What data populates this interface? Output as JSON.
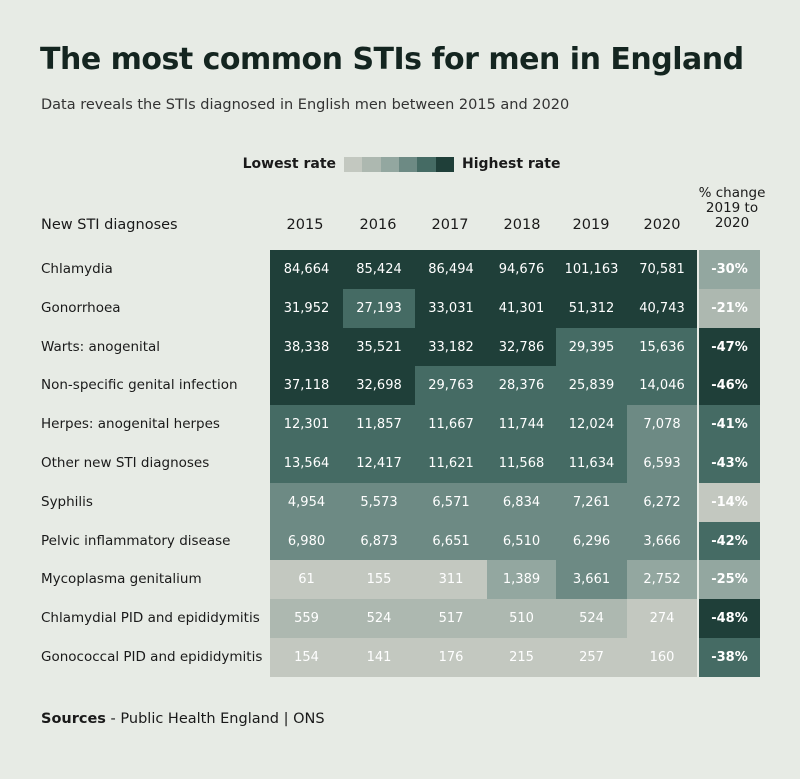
{
  "title": "The most common STIs for men in England",
  "subtitle": "Data reveals the STIs diagnosed in English men between 2015 and 2020",
  "legend": {
    "low_label": "Lowest rate",
    "high_label": "Highest rate",
    "scale_colors": [
      "#c3c8c0",
      "#adb8b0",
      "#93a7a0",
      "#6d8a84",
      "#456b64",
      "#1f3f39"
    ]
  },
  "table": {
    "row_header": "New STI diagnoses",
    "change_header": "% change 2019 to 2020",
    "years": [
      "2015",
      "2016",
      "2017",
      "2018",
      "2019",
      "2020"
    ]
  },
  "chart_data": {
    "type": "table",
    "title": "The most common STIs for men in England",
    "subtitle": "Data reveals the STIs diagnosed in English men between 2015 and 2020",
    "columns": [
      "2015",
      "2016",
      "2017",
      "2018",
      "2019",
      "2020"
    ],
    "rows": [
      {
        "name": "Chlamydia",
        "display": [
          "84,664",
          "85,424",
          "86,494",
          "94,676",
          "101,163",
          "70,581"
        ],
        "values": [
          84664,
          85424,
          86494,
          94676,
          101163,
          70581
        ],
        "change": "-30%",
        "change_value": -30
      },
      {
        "name": "Gonorrhoea",
        "display": [
          "31,952",
          "27,193",
          "33,031",
          "41,301",
          "51,312",
          "40,743"
        ],
        "values": [
          31952,
          27193,
          33031,
          41301,
          51312,
          40743
        ],
        "change": "-21%",
        "change_value": -21
      },
      {
        "name": "Warts: anogenital",
        "display": [
          "38,338",
          "35,521",
          "33,182",
          "32,786",
          "29,395",
          "15,636"
        ],
        "values": [
          38338,
          35521,
          33182,
          32786,
          29395,
          15636
        ],
        "change": "-47%",
        "change_value": -47
      },
      {
        "name": "Non-specific genital infection",
        "display": [
          "37,118",
          "32,698",
          "29,763",
          "28,376",
          "25,839",
          "14,046"
        ],
        "values": [
          37118,
          32698,
          29763,
          28376,
          25839,
          14046
        ],
        "change": "-46%",
        "change_value": -46
      },
      {
        "name": "Herpes: anogenital herpes",
        "display": [
          "12,301",
          "11,857",
          "11,667",
          "11,744",
          "12,024",
          "7,078"
        ],
        "values": [
          12301,
          11857,
          11667,
          11744,
          12024,
          7078
        ],
        "change": "-41%",
        "change_value": -41
      },
      {
        "name": "Other new STI diagnoses",
        "display": [
          "13,564",
          "12,417",
          "11,621",
          "11,568",
          "11,634",
          "6,593"
        ],
        "values": [
          13564,
          12417,
          11621,
          11568,
          11634,
          6593
        ],
        "change": "-43%",
        "change_value": -43
      },
      {
        "name": "Syphilis",
        "display": [
          "4,954",
          "5,573",
          "6,571",
          "6,834",
          "7,261",
          "6,272"
        ],
        "values": [
          4954,
          5573,
          6571,
          6834,
          7261,
          6272
        ],
        "change": "-14%",
        "change_value": -14
      },
      {
        "name": "Pelvic inflammatory disease",
        "display": [
          "6,980",
          "6,873",
          "6,651",
          "6,510",
          "6,296",
          "3,666"
        ],
        "values": [
          6980,
          6873,
          6651,
          6510,
          6296,
          3666
        ],
        "change": "-42%",
        "change_value": -42
      },
      {
        "name": "Mycoplasma genitalium",
        "display": [
          "61",
          "155",
          "311",
          "1,389",
          "3,661",
          "2,752"
        ],
        "values": [
          61,
          155,
          311,
          1389,
          3661,
          2752
        ],
        "change": "-25%",
        "change_value": -25
      },
      {
        "name": "Chlamydial PID and epididymitis",
        "display": [
          "559",
          "524",
          "517",
          "510",
          "524",
          "274"
        ],
        "values": [
          559,
          524,
          517,
          510,
          524,
          274
        ],
        "change": "-48%",
        "change_value": -48
      },
      {
        "name": "Gonococcal PID and epididymitis",
        "display": [
          "154",
          "141",
          "176",
          "215",
          "257",
          "160"
        ],
        "values": [
          154,
          141,
          176,
          215,
          257,
          160
        ],
        "change": "-38%",
        "change_value": -38
      }
    ]
  },
  "sources": {
    "label": "Sources",
    "text": " - Public Health England | ONS"
  }
}
